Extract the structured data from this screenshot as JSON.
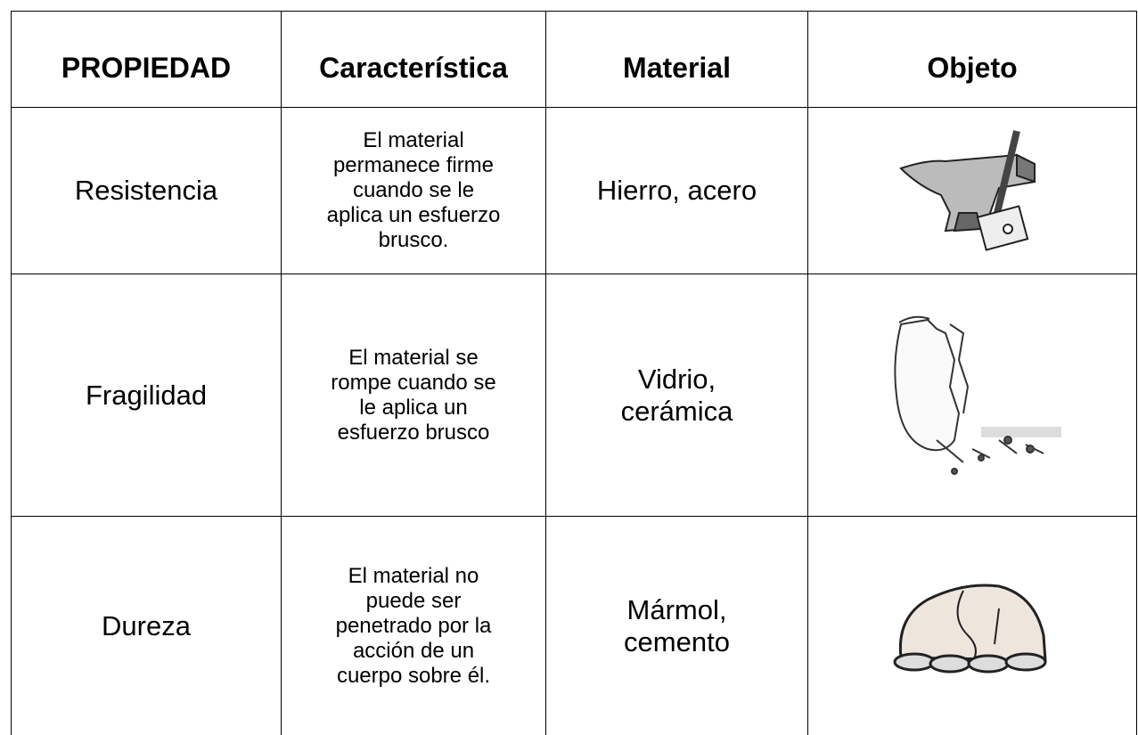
{
  "table": {
    "header": [
      "PROPIEDAD",
      "Característica",
      "Material",
      "Objeto"
    ],
    "rows": [
      [
        "Resistencia",
        "El material\npermanece firme\ncuando se le\naplica un esfuerzo\nbrusco.",
        "Hierro, acero"
      ],
      [
        "Fragilidad",
        "El material se\nrompe cuando se\nle aplica un\nesfuerzo brusco",
        "Vidrio,\ncerámica"
      ],
      [
        "Dureza",
        "El material no\npuede ser\npenetrado por la\nacción de un\ncuerpo sobre él.",
        "Mármol,\ncemento"
      ]
    ]
  }
}
